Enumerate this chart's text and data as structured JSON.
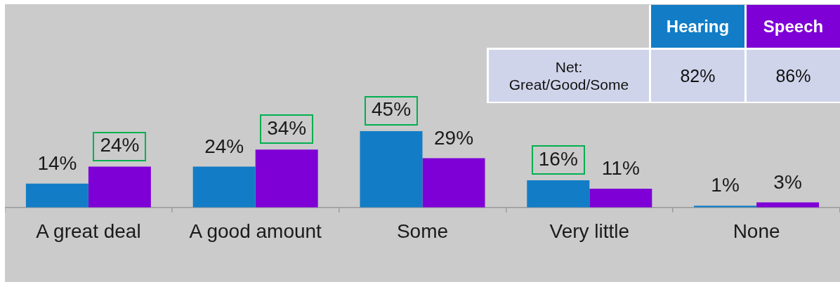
{
  "chart_data": {
    "type": "bar",
    "categories": [
      "A great deal",
      "A good amount",
      "Some",
      "Very little",
      "None"
    ],
    "series": [
      {
        "name": "Hearing",
        "color": "#127dc6",
        "values": [
          14,
          24,
          45,
          16,
          1
        ],
        "value_labels": [
          "14%",
          "24%",
          null,
          null,
          "1%"
        ]
      },
      {
        "name": "Speech",
        "color": "#7e00d6",
        "values": [
          24,
          34,
          29,
          11,
          3
        ],
        "value_labels": [
          null,
          null,
          "29%",
          "11%",
          "3%"
        ]
      }
    ],
    "annotations": [
      {
        "text": "24%",
        "x": "A great deal",
        "y": 24
      },
      {
        "text": "34%",
        "x": "A good amount",
        "y": 34
      },
      {
        "text": "45%",
        "x": "Some",
        "y": 45
      },
      {
        "text": "16%",
        "x": "Very little",
        "y": 16
      },
      "Net: Great/Good/Some",
      "82%",
      "86%"
    ],
    "legend": "top right",
    "tick_labels": "x"
  }
}
